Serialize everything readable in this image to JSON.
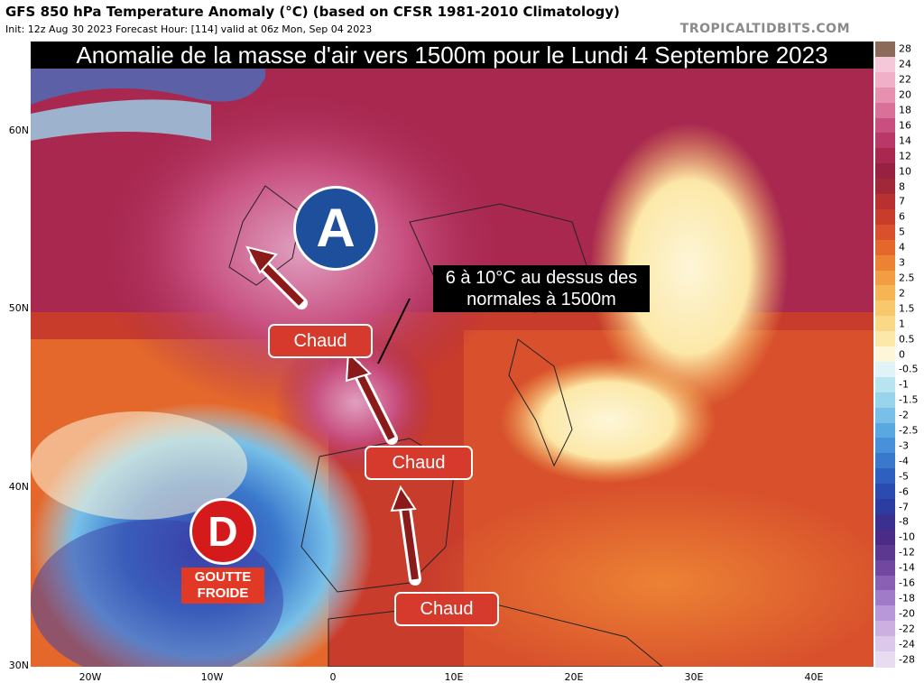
{
  "header": {
    "title": "GFS 850 hPa Temperature Anomaly (°C) (based on CFSR 1981-2010 Climatology)",
    "subtitle": "Init: 12z Aug 30 2023   Forecast Hour: [114]   valid at 06z Mon, Sep 04 2023",
    "brand": "TROPICALTIDBITS.COM"
  },
  "banner": "Anomalie de la masse d'air vers 1500m pour le Lundi 4 Septembre 2023",
  "map": {
    "pressure_high": "A",
    "pressure_low": "D",
    "low_label": "GOUTTE\nFROIDE",
    "warm_labels": [
      "Chaud",
      "Chaud",
      "Chaud"
    ],
    "note": "6 à 10°C au dessus des normales à 1500m"
  },
  "axes": {
    "lat_labels": [
      "60N",
      "50N",
      "40N",
      "30N"
    ],
    "lon_labels": [
      "20W",
      "10W",
      "0",
      "10E",
      "20E",
      "30E",
      "40E"
    ]
  },
  "colorbar": {
    "labels": [
      "28",
      "24",
      "22",
      "20",
      "18",
      "16",
      "14",
      "12",
      "10",
      "8",
      "7",
      "6",
      "5",
      "4",
      "3",
      "2.5",
      "2",
      "1.5",
      "1",
      "0.5",
      "0",
      "-0.5",
      "-1",
      "-1.5",
      "-2",
      "-2.5",
      "-3",
      "-4",
      "-5",
      "-6",
      "-7",
      "-8",
      "-10",
      "-12",
      "-14",
      "-16",
      "-18",
      "-20",
      "-22",
      "-24",
      "-28"
    ],
    "colors": [
      "#8c6a5a",
      "#f4c8d8",
      "#f0b0c8",
      "#e890b0",
      "#d87098",
      "#c85080",
      "#b83868",
      "#a82850",
      "#982040",
      "#a02838",
      "#b83030",
      "#c83c2c",
      "#d8502c",
      "#e4682c",
      "#ec8234",
      "#f29c44",
      "#f6b454",
      "#f8c86c",
      "#fad888",
      "#fce8a8",
      "#fdf6d8",
      "#e0f4f8",
      "#b8e4f0",
      "#98d4ec",
      "#78c0e8",
      "#5aa8e0",
      "#4890d8",
      "#3a78cc",
      "#2e60c0",
      "#2a4cb0",
      "#2c3ca0",
      "#3a3090",
      "#4a2c88",
      "#5c3890",
      "#7048a0",
      "#8860b4",
      "#a07cc8",
      "#b898d8",
      "#ccb0e0",
      "#dcc8e8",
      "#e8dcf0"
    ]
  },
  "colors": {
    "anticyclone": "#1e4f9c",
    "depression": "#d41a1a",
    "warm_tag": "#d63a2c",
    "arrow": "#8b1a1a"
  }
}
